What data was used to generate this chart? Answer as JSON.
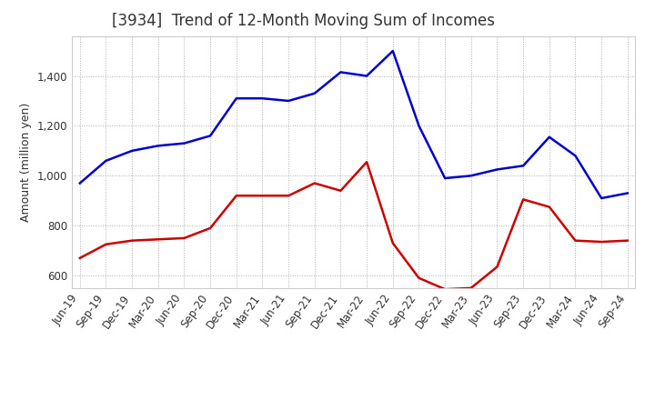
{
  "title": "[3934]  Trend of 12-Month Moving Sum of Incomes",
  "ylabel": "Amount (million yen)",
  "x_labels": [
    "Jun-19",
    "Sep-19",
    "Dec-19",
    "Mar-20",
    "Jun-20",
    "Sep-20",
    "Dec-20",
    "Mar-21",
    "Jun-21",
    "Sep-21",
    "Dec-21",
    "Mar-22",
    "Jun-22",
    "Sep-22",
    "Dec-22",
    "Mar-23",
    "Jun-23",
    "Sep-23",
    "Dec-23",
    "Mar-24",
    "Jun-24",
    "Sep-24"
  ],
  "ordinary_income": [
    970,
    1060,
    1100,
    1120,
    1130,
    1160,
    1310,
    1310,
    1300,
    1330,
    1415,
    1400,
    1500,
    1200,
    990,
    1000,
    1025,
    1040,
    1155,
    1080,
    910,
    930
  ],
  "net_income": [
    670,
    725,
    740,
    745,
    750,
    790,
    920,
    920,
    920,
    970,
    940,
    1055,
    730,
    590,
    545,
    550,
    635,
    905,
    875,
    740,
    735,
    740
  ],
  "ordinary_income_color": "#0000cc",
  "net_income_color": "#cc0000",
  "ylim_min": 550,
  "ylim_max": 1560,
  "yticks": [
    600,
    800,
    1000,
    1200,
    1400
  ],
  "background_color": "#ffffff",
  "grid_color": "#999999",
  "title_color": "#333333",
  "title_fontsize": 12,
  "ylabel_fontsize": 9,
  "tick_fontsize": 8.5,
  "legend_fontsize": 9.5
}
